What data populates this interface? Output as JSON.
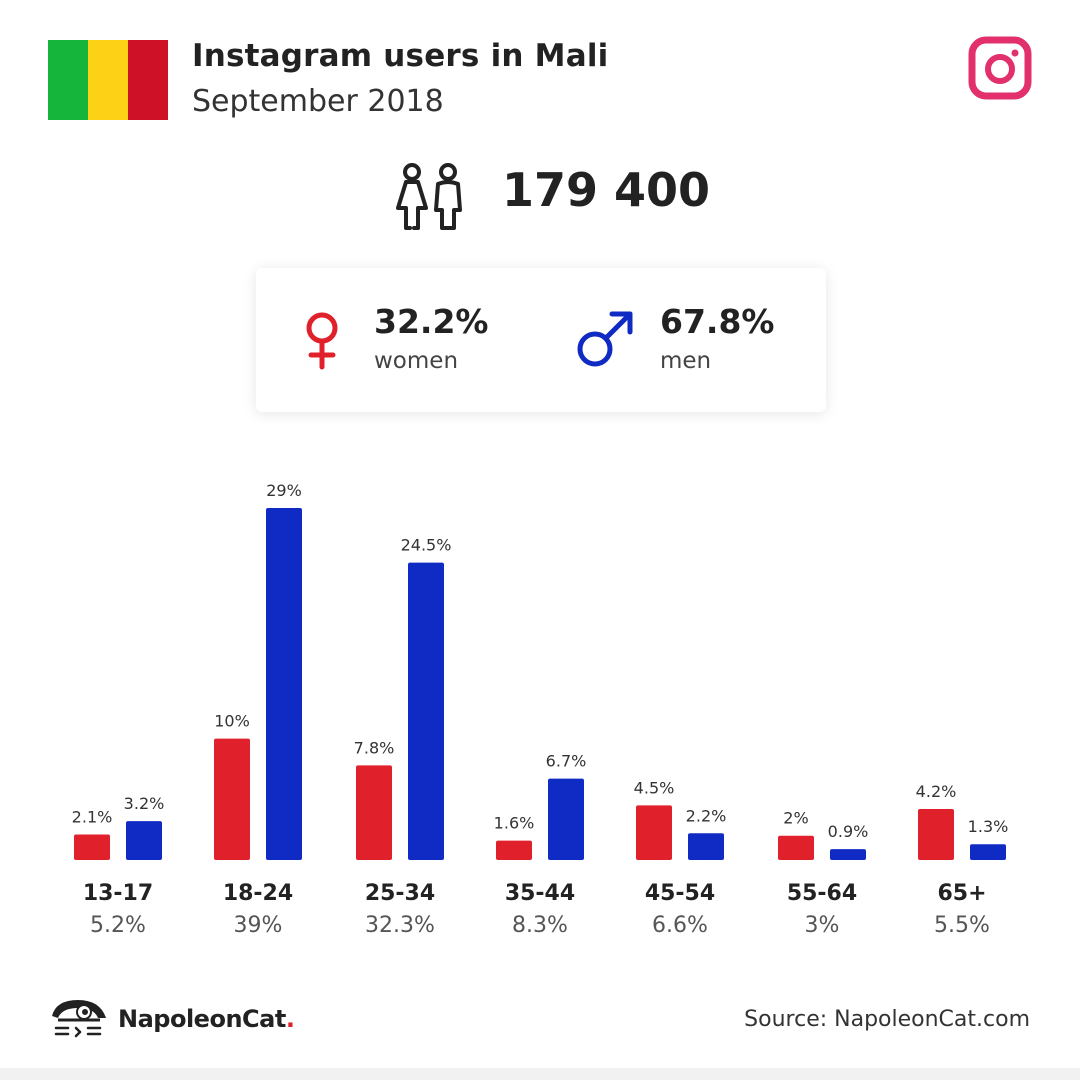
{
  "header": {
    "title": "Instagram users in Mali",
    "subtitle": "September 2018",
    "flag_colors": [
      "#14b53a",
      "#fcd116",
      "#ce1126"
    ],
    "icon": "instagram-icon",
    "icon_color": "#e1306c"
  },
  "total": {
    "value": "179 400",
    "icon": "people-icon"
  },
  "gender": {
    "women": {
      "pct": "32.2%",
      "label": "women",
      "color": "#e0202a",
      "icon": "female-symbol-icon"
    },
    "men": {
      "pct": "67.8%",
      "label": "men",
      "color": "#0f2bc3",
      "icon": "male-symbol-icon"
    }
  },
  "chart_data": {
    "type": "bar",
    "categories": [
      "13-17",
      "18-24",
      "25-34",
      "35-44",
      "45-54",
      "55-64",
      "65+"
    ],
    "category_totals": [
      "5.2%",
      "39%",
      "32.3%",
      "8.3%",
      "6.6%",
      "3%",
      "5.5%"
    ],
    "series": [
      {
        "color": "#e0202a",
        "values": [
          2.1,
          10,
          7.8,
          1.6,
          4.5,
          2,
          4.2
        ],
        "labels": [
          "2.1%",
          "10%",
          "7.8%",
          "1.6%",
          "4.5%",
          "2%",
          "4.2%"
        ]
      },
      {
        "color": "#0f2bc3",
        "values": [
          3.2,
          29,
          24.5,
          6.7,
          2.2,
          0.9,
          1.3
        ],
        "labels": [
          "3.2%",
          "29%",
          "24.5%",
          "6.7%",
          "2.2%",
          "0.9%",
          "1.3%"
        ]
      }
    ],
    "ylim": [
      0,
      29
    ],
    "grid": false,
    "legend": "none"
  },
  "footer": {
    "brand": "NapoleonCat",
    "brand_dot": ".",
    "brand_icon": "napoleoncat-logo-icon",
    "source": "Source: NapoleonCat.com"
  }
}
